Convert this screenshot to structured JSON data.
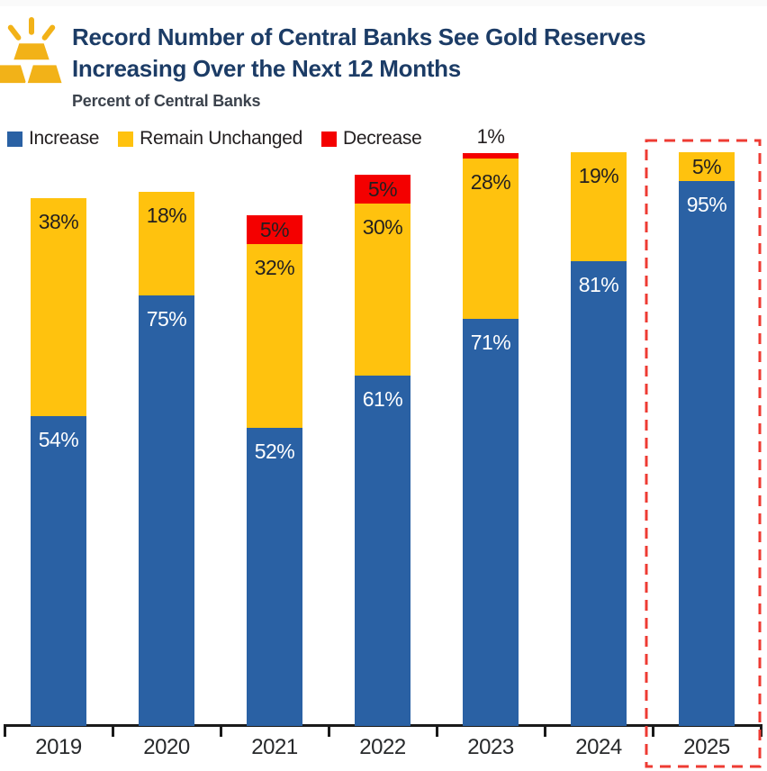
{
  "header": {
    "title_line1": "Record Number of Central Banks See Gold Reserves",
    "title_line2": "Increasing Over the Next 12 Months",
    "subtitle": "Percent of Central Banks",
    "icon": "gold-bars-sun-icon",
    "icon_color": "#f2b218",
    "title_color": "#1c3c66"
  },
  "chart_data": {
    "type": "bar",
    "stacked": true,
    "title": "Record Number of Central Banks See Gold Reserves Increasing Over the Next 12 Months",
    "subtitle": "Percent of Central Banks",
    "categories": [
      "2019",
      "2020",
      "2021",
      "2022",
      "2023",
      "2024",
      "2025"
    ],
    "series": [
      {
        "name": "Increase",
        "color": "#2a61a4",
        "label_color": "#ffffff",
        "values": [
          54,
          75,
          52,
          61,
          71,
          81,
          95
        ]
      },
      {
        "name": "Remain Unchanged",
        "color": "#ffc20e",
        "label_color": "#231f20",
        "values": [
          38,
          18,
          32,
          30,
          28,
          19,
          5
        ]
      },
      {
        "name": "Decrease",
        "color": "#f40000",
        "label_color": "#231f20",
        "values": [
          0,
          0,
          5,
          5,
          1,
          0,
          0
        ]
      }
    ],
    "unit": "%",
    "ylim": [
      0,
      100
    ],
    "grid": false,
    "legend_position": "top-left",
    "xlabel": "",
    "ylabel": "",
    "highlight": {
      "category": "2025",
      "style": "dashed-box",
      "color": "#ee3b33"
    }
  }
}
